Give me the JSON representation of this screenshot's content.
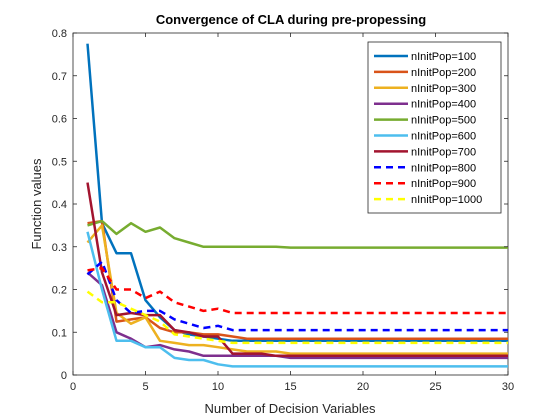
{
  "chart_data": {
    "type": "line",
    "title": "Convergence of CLA during pre-propessing",
    "xlabel": "Number of Decision Variables",
    "ylabel": "Function values",
    "xlim": [
      0,
      30
    ],
    "ylim": [
      0,
      0.8
    ],
    "xticks": [
      "0",
      "5",
      "10",
      "15",
      "20",
      "25",
      "30"
    ],
    "yticks": [
      "0",
      "0.1",
      "0.2",
      "0.3",
      "0.4",
      "0.5",
      "0.6",
      "0.7",
      "0.8"
    ],
    "grid": false,
    "legend_position": "top-right",
    "x": [
      1,
      2,
      3,
      4,
      5,
      6,
      7,
      8,
      9,
      10,
      11,
      12,
      13,
      14,
      15,
      16,
      17,
      18,
      19,
      20,
      21,
      22,
      23,
      24,
      25,
      26,
      27,
      28,
      29,
      30
    ],
    "series": [
      {
        "name": "nInitPop=100",
        "color": "#0072BD",
        "style": "solid",
        "values": [
          0.775,
          0.355,
          0.285,
          0.285,
          0.175,
          0.135,
          0.105,
          0.095,
          0.09,
          0.085,
          0.08,
          0.08,
          0.08,
          0.08,
          0.08,
          0.08,
          0.08,
          0.08,
          0.08,
          0.08,
          0.08,
          0.08,
          0.08,
          0.08,
          0.08,
          0.08,
          0.08,
          0.08,
          0.08,
          0.08
        ]
      },
      {
        "name": "nInitPop=200",
        "color": "#D95319",
        "style": "solid",
        "values": [
          0.355,
          0.36,
          0.125,
          0.13,
          0.135,
          0.11,
          0.1,
          0.1,
          0.095,
          0.095,
          0.09,
          0.085,
          0.085,
          0.085,
          0.085,
          0.085,
          0.085,
          0.085,
          0.085,
          0.085,
          0.085,
          0.085,
          0.085,
          0.085,
          0.085,
          0.085,
          0.085,
          0.085,
          0.085,
          0.085
        ]
      },
      {
        "name": "nInitPop=300",
        "color": "#EDB120",
        "style": "solid",
        "values": [
          0.31,
          0.35,
          0.145,
          0.12,
          0.135,
          0.08,
          0.075,
          0.07,
          0.07,
          0.065,
          0.06,
          0.055,
          0.055,
          0.055,
          0.05,
          0.05,
          0.05,
          0.05,
          0.05,
          0.05,
          0.05,
          0.05,
          0.05,
          0.05,
          0.05,
          0.05,
          0.05,
          0.05,
          0.05,
          0.05
        ]
      },
      {
        "name": "nInitPop=400",
        "color": "#7E2F8E",
        "style": "solid",
        "values": [
          0.24,
          0.21,
          0.1,
          0.085,
          0.065,
          0.07,
          0.06,
          0.055,
          0.045,
          0.045,
          0.045,
          0.045,
          0.045,
          0.045,
          0.04,
          0.04,
          0.04,
          0.04,
          0.04,
          0.04,
          0.04,
          0.04,
          0.04,
          0.04,
          0.04,
          0.04,
          0.04,
          0.04,
          0.04,
          0.04
        ]
      },
      {
        "name": "nInitPop=500",
        "color": "#77AC30",
        "style": "solid",
        "values": [
          0.35,
          0.36,
          0.33,
          0.355,
          0.335,
          0.345,
          0.32,
          0.31,
          0.3,
          0.3,
          0.3,
          0.3,
          0.3,
          0.3,
          0.298,
          0.298,
          0.298,
          0.298,
          0.298,
          0.298,
          0.298,
          0.298,
          0.298,
          0.298,
          0.298,
          0.298,
          0.298,
          0.298,
          0.298,
          0.298
        ]
      },
      {
        "name": "nInitPop=600",
        "color": "#4DBEEE",
        "style": "solid",
        "values": [
          0.335,
          0.2,
          0.08,
          0.08,
          0.065,
          0.065,
          0.04,
          0.035,
          0.035,
          0.025,
          0.02,
          0.02,
          0.02,
          0.02,
          0.02,
          0.02,
          0.02,
          0.02,
          0.02,
          0.02,
          0.02,
          0.02,
          0.02,
          0.02,
          0.02,
          0.02,
          0.02,
          0.02,
          0.02,
          0.02
        ]
      },
      {
        "name": "nInitPop=700",
        "color": "#A2142F",
        "style": "solid",
        "values": [
          0.45,
          0.24,
          0.14,
          0.145,
          0.14,
          0.14,
          0.105,
          0.1,
          0.09,
          0.09,
          0.05,
          0.05,
          0.05,
          0.045,
          0.045,
          0.045,
          0.045,
          0.045,
          0.045,
          0.045,
          0.045,
          0.045,
          0.045,
          0.045,
          0.045,
          0.045,
          0.045,
          0.045,
          0.045,
          0.045
        ]
      },
      {
        "name": "nInitPop=800",
        "color": "#0000FF",
        "style": "dashed",
        "values": [
          0.235,
          0.265,
          0.175,
          0.145,
          0.15,
          0.15,
          0.13,
          0.12,
          0.11,
          0.115,
          0.105,
          0.105,
          0.105,
          0.105,
          0.105,
          0.105,
          0.105,
          0.105,
          0.105,
          0.105,
          0.105,
          0.105,
          0.105,
          0.105,
          0.105,
          0.105,
          0.105,
          0.105,
          0.105,
          0.105
        ]
      },
      {
        "name": "nInitPop=900",
        "color": "#FF0000",
        "style": "dashed",
        "values": [
          0.245,
          0.25,
          0.2,
          0.2,
          0.18,
          0.195,
          0.17,
          0.16,
          0.15,
          0.155,
          0.145,
          0.145,
          0.145,
          0.145,
          0.145,
          0.145,
          0.145,
          0.145,
          0.145,
          0.145,
          0.145,
          0.145,
          0.145,
          0.145,
          0.145,
          0.145,
          0.145,
          0.145,
          0.145,
          0.145
        ]
      },
      {
        "name": "nInitPop=1000",
        "color": "#FFFF00",
        "style": "dashed",
        "values": [
          0.195,
          0.17,
          0.17,
          0.155,
          0.14,
          0.125,
          0.095,
          0.09,
          0.085,
          0.08,
          0.075,
          0.075,
          0.075,
          0.075,
          0.075,
          0.075,
          0.075,
          0.075,
          0.075,
          0.075,
          0.075,
          0.075,
          0.075,
          0.075,
          0.075,
          0.075,
          0.075,
          0.075,
          0.075,
          0.075
        ]
      }
    ]
  }
}
